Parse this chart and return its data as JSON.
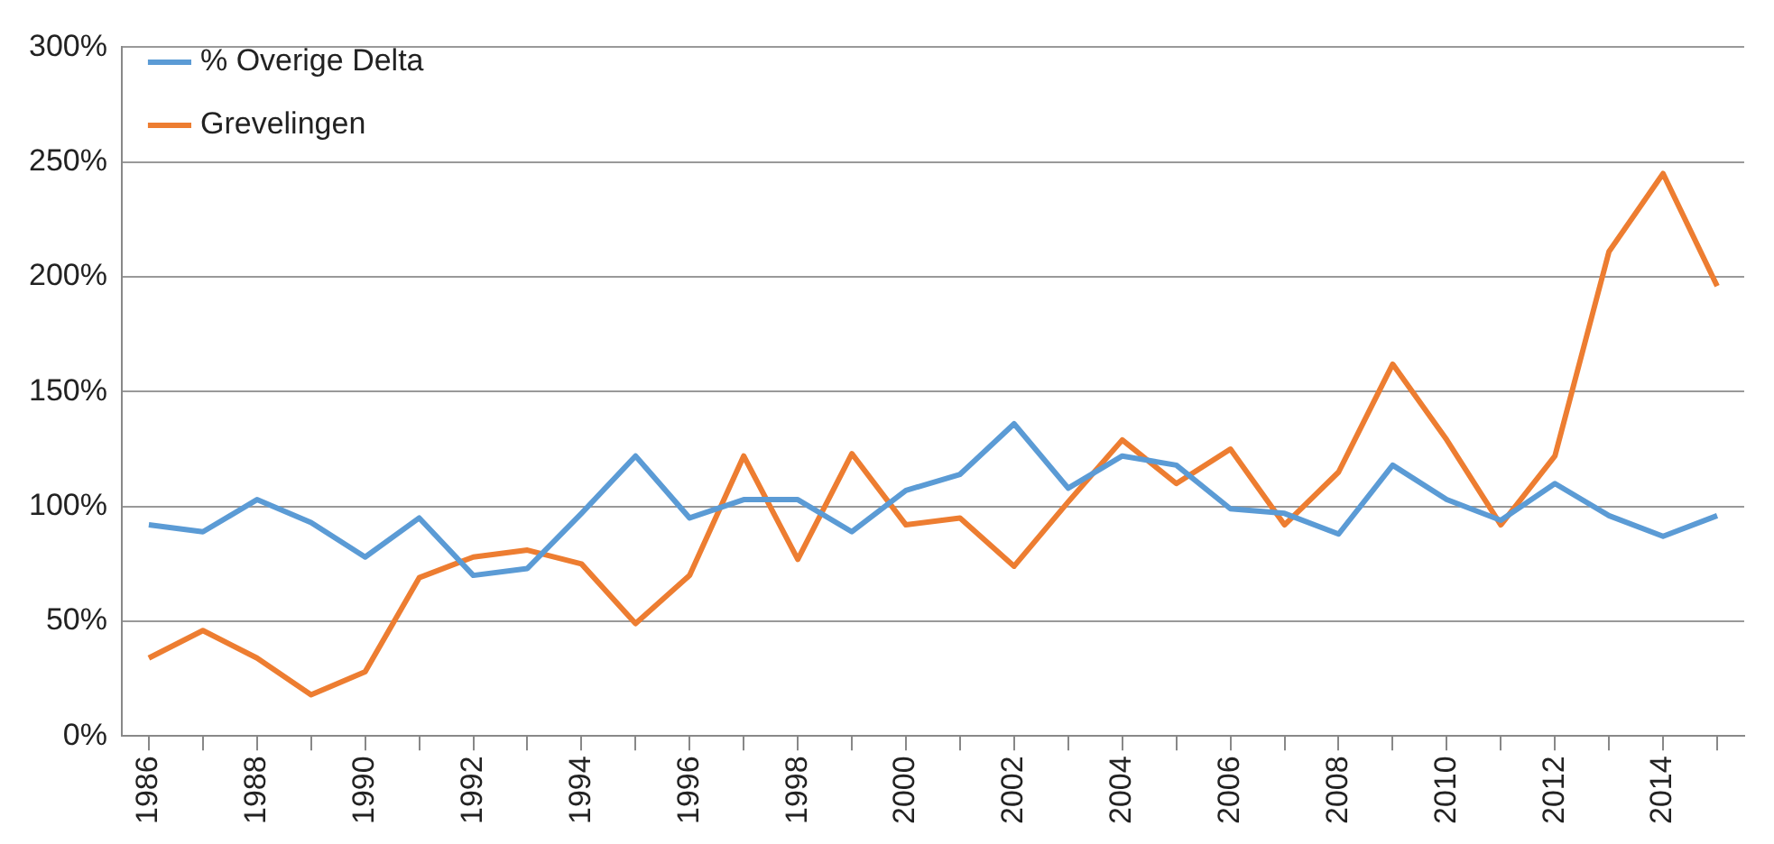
{
  "chart_data": {
    "type": "line",
    "categories": [
      "1986",
      null,
      "1988",
      null,
      "1990",
      null,
      "1992",
      null,
      "1994",
      null,
      "1996",
      null,
      "1998",
      null,
      "2000",
      null,
      "2002",
      null,
      "2004",
      null,
      "2006",
      null,
      "2008",
      null,
      "2010",
      null,
      "2012",
      null,
      "2014",
      null
    ],
    "series": [
      {
        "name": "% Overige Delta",
        "color": "#5b9bd5",
        "values": [
          92,
          89,
          103,
          93,
          78,
          95,
          70,
          73,
          97,
          122,
          95,
          103,
          103,
          89,
          107,
          114,
          136,
          108,
          122,
          118,
          99,
          97,
          88,
          118,
          103,
          94,
          110,
          96,
          87,
          96
        ]
      },
      {
        "name": "Grevelingen",
        "color": "#ed7d31",
        "values": [
          34,
          46,
          34,
          18,
          28,
          69,
          78,
          81,
          75,
          49,
          70,
          122,
          77,
          123,
          92,
          95,
          74,
          102,
          129,
          110,
          125,
          92,
          115,
          162,
          129,
          92,
          122,
          211,
          245,
          196
        ]
      }
    ],
    "ylim": [
      0,
      300
    ],
    "yticks": [
      {
        "value": 0,
        "label": "0%"
      },
      {
        "value": 50,
        "label": "50%"
      },
      {
        "value": 100,
        "label": "100%"
      },
      {
        "value": 150,
        "label": "150%"
      },
      {
        "value": 200,
        "label": "200%"
      },
      {
        "value": 250,
        "label": "250%"
      },
      {
        "value": 300,
        "label": "300%"
      }
    ],
    "grid": "y",
    "legend": "top left",
    "marker": "none",
    "line_style": "solid"
  }
}
